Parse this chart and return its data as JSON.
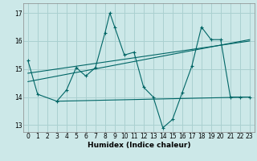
{
  "xlabel": "Humidex (Indice chaleur)",
  "bg_color": "#cce8e8",
  "grid_color": "#aad0d0",
  "line_color": "#006666",
  "xlim": [
    -0.5,
    23.5
  ],
  "ylim": [
    12.75,
    17.35
  ],
  "yticks": [
    13,
    14,
    15,
    16,
    17
  ],
  "xticks": [
    0,
    1,
    2,
    3,
    4,
    5,
    6,
    7,
    8,
    9,
    10,
    11,
    12,
    13,
    14,
    15,
    16,
    17,
    18,
    19,
    20,
    21,
    22,
    23
  ],
  "series": [
    [
      0,
      15.3
    ],
    [
      1,
      14.1
    ],
    [
      3,
      13.85
    ],
    [
      4,
      14.25
    ],
    [
      5,
      15.05
    ],
    [
      6,
      14.75
    ],
    [
      7,
      15.05
    ],
    [
      8,
      16.3
    ],
    [
      8.5,
      17.0
    ],
    [
      9,
      16.5
    ],
    [
      10,
      15.5
    ],
    [
      11,
      15.6
    ],
    [
      12,
      14.35
    ],
    [
      13,
      14.0
    ],
    [
      14,
      12.9
    ],
    [
      15,
      13.2
    ],
    [
      16,
      14.15
    ],
    [
      17,
      15.1
    ],
    [
      18,
      16.5
    ],
    [
      19,
      16.05
    ],
    [
      20,
      16.05
    ],
    [
      21,
      14.0
    ],
    [
      22,
      14.0
    ],
    [
      23,
      14.0
    ]
  ],
  "regression_lines": [
    {
      "x0": 0,
      "y0": 14.55,
      "x1": 23,
      "y1": 16.05
    },
    {
      "x0": 0,
      "y0": 14.85,
      "x1": 23,
      "y1": 16.0
    },
    {
      "x0": 3,
      "y0": 13.85,
      "x1": 23,
      "y1": 14.0
    }
  ]
}
